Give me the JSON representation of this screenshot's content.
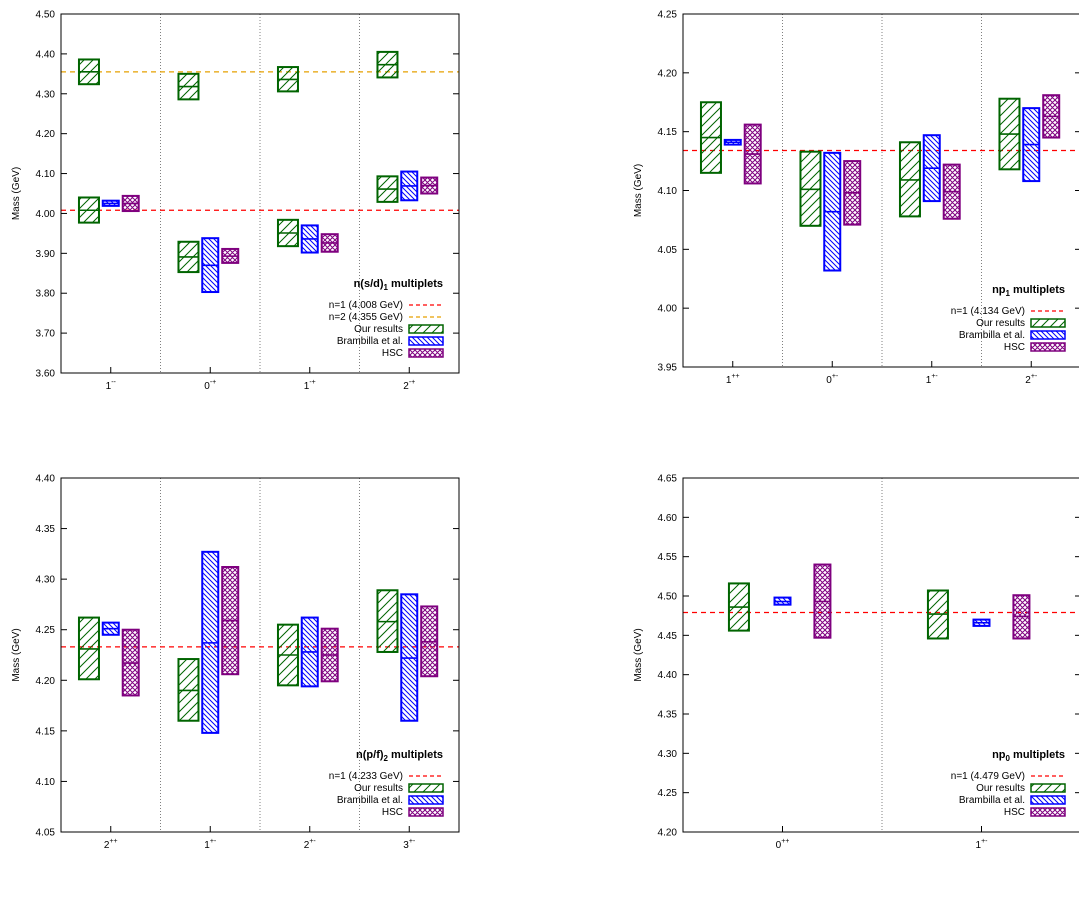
{
  "colors": {
    "our": "#006400",
    "brambilla": "#0000ff",
    "hsc": "#7f007f",
    "line1": "#ff0000",
    "line2": "#e6a000",
    "frame": "#000000",
    "separator": "#808080"
  },
  "chart_data": [
    {
      "type": "bar",
      "title": "n(s/d)₁ multiplets",
      "title_main": "n(s/d)",
      "title_sub": "1",
      "title_rest": " multiplets",
      "ylabel": "Mass (GeV)",
      "ylim": [
        3.6,
        4.5
      ],
      "yticks": [
        "3.60",
        "3.70",
        "3.80",
        "3.90",
        "4.00",
        "4.10",
        "4.20",
        "4.30",
        "4.40",
        "4.50"
      ],
      "grid": false,
      "legend_position": "bottom-right",
      "categories": [
        {
          "base": "1",
          "sup": "--"
        },
        {
          "base": "0",
          "sup": "-+"
        },
        {
          "base": "1",
          "sup": "-+"
        },
        {
          "base": "2",
          "sup": "-+"
        }
      ],
      "reference_lines": [
        {
          "label": "n=1 (4.008 GeV)",
          "value": 4.008,
          "color": "#ff0000"
        },
        {
          "label": "n=2 (4.355 GeV)",
          "value": 4.355,
          "color": "#e6a000"
        }
      ],
      "series": [
        {
          "name": "Our results",
          "boxes": [
            {
              "cat": 0,
              "slot": 0,
              "low": 3.977,
              "mid": 4.008,
              "high": 4.04
            },
            {
              "cat": 0,
              "slot": 0,
              "low": 4.324,
              "mid": 4.355,
              "high": 4.386
            },
            {
              "cat": 1,
              "slot": 0,
              "low": 3.853,
              "mid": 3.891,
              "high": 3.929
            },
            {
              "cat": 1,
              "slot": 0,
              "low": 4.286,
              "mid": 4.318,
              "high": 4.35
            },
            {
              "cat": 2,
              "slot": 0,
              "low": 3.918,
              "mid": 3.951,
              "high": 3.984
            },
            {
              "cat": 2,
              "slot": 0,
              "low": 4.306,
              "mid": 4.336,
              "high": 4.367
            },
            {
              "cat": 3,
              "slot": 0,
              "low": 4.029,
              "mid": 4.061,
              "high": 4.093
            },
            {
              "cat": 3,
              "slot": 0,
              "low": 4.341,
              "mid": 4.373,
              "high": 4.405
            }
          ]
        },
        {
          "name": "Brambilla et al.",
          "boxes": [
            {
              "cat": 0,
              "slot": 1,
              "low": 4.019,
              "mid": 4.025,
              "high": 4.032
            },
            {
              "cat": 1,
              "slot": 1,
              "low": 3.803,
              "mid": 3.87,
              "high": 3.938
            },
            {
              "cat": 2,
              "slot": 1,
              "low": 3.902,
              "mid": 3.936,
              "high": 3.97
            },
            {
              "cat": 3,
              "slot": 1,
              "low": 4.033,
              "mid": 4.069,
              "high": 4.105
            }
          ]
        },
        {
          "name": "HSC",
          "boxes": [
            {
              "cat": 0,
              "slot": 2,
              "low": 4.006,
              "mid": 4.025,
              "high": 4.044
            },
            {
              "cat": 1,
              "slot": 2,
              "low": 3.876,
              "mid": 3.893,
              "high": 3.911
            },
            {
              "cat": 2,
              "slot": 2,
              "low": 3.904,
              "mid": 3.926,
              "high": 3.948
            },
            {
              "cat": 3,
              "slot": 2,
              "low": 4.05,
              "mid": 4.07,
              "high": 4.09
            }
          ]
        }
      ]
    },
    {
      "type": "bar",
      "title": "np₁ multiplets",
      "title_main": "np",
      "title_sub": "1",
      "title_rest": " multiplets",
      "ylabel": "Mass (GeV)",
      "ylim": [
        3.95,
        4.25
      ],
      "yticks": [
        "3.95",
        "4.00",
        "4.05",
        "4.10",
        "4.15",
        "4.20",
        "4.25"
      ],
      "grid": false,
      "legend_position": "bottom-right",
      "categories": [
        {
          "base": "1",
          "sup": "++"
        },
        {
          "base": "0",
          "sup": "+-"
        },
        {
          "base": "1",
          "sup": "+-"
        },
        {
          "base": "2",
          "sup": "+-"
        }
      ],
      "reference_lines": [
        {
          "label": "n=1 (4.134 GeV)",
          "value": 4.134,
          "color": "#ff0000"
        }
      ],
      "series": [
        {
          "name": "Our results",
          "boxes": [
            {
              "cat": 0,
              "slot": 0,
              "low": 4.115,
              "mid": 4.145,
              "high": 4.175
            },
            {
              "cat": 1,
              "slot": 0,
              "low": 4.07,
              "mid": 4.101,
              "high": 4.133
            },
            {
              "cat": 2,
              "slot": 0,
              "low": 4.078,
              "mid": 4.109,
              "high": 4.141
            },
            {
              "cat": 3,
              "slot": 0,
              "low": 4.118,
              "mid": 4.148,
              "high": 4.178
            }
          ]
        },
        {
          "name": "Brambilla et al.",
          "boxes": [
            {
              "cat": 0,
              "slot": 1,
              "low": 4.139,
              "mid": 4.141,
              "high": 4.143
            },
            {
              "cat": 1,
              "slot": 1,
              "low": 4.032,
              "mid": 4.082,
              "high": 4.132
            },
            {
              "cat": 2,
              "slot": 1,
              "low": 4.091,
              "mid": 4.119,
              "high": 4.147
            },
            {
              "cat": 3,
              "slot": 1,
              "low": 4.108,
              "mid": 4.139,
              "high": 4.17
            }
          ]
        },
        {
          "name": "HSC",
          "boxes": [
            {
              "cat": 0,
              "slot": 2,
              "low": 4.106,
              "mid": 4.131,
              "high": 4.156
            },
            {
              "cat": 1,
              "slot": 2,
              "low": 4.071,
              "mid": 4.098,
              "high": 4.125
            },
            {
              "cat": 2,
              "slot": 2,
              "low": 4.076,
              "mid": 4.099,
              "high": 4.122
            },
            {
              "cat": 3,
              "slot": 2,
              "low": 4.145,
              "mid": 4.163,
              "high": 4.181
            }
          ]
        }
      ]
    },
    {
      "type": "bar",
      "title": "n(p/f)₂ multiplets",
      "title_main": "n(p/f)",
      "title_sub": "2",
      "title_rest": " multiplets",
      "ylabel": "Mass (GeV)",
      "ylim": [
        4.05,
        4.4
      ],
      "yticks": [
        "4.05",
        "4.10",
        "4.15",
        "4.20",
        "4.25",
        "4.30",
        "4.35",
        "4.40"
      ],
      "grid": false,
      "legend_position": "bottom-right",
      "categories": [
        {
          "base": "2",
          "sup": "++"
        },
        {
          "base": "1",
          "sup": "+-"
        },
        {
          "base": "2",
          "sup": "+-"
        },
        {
          "base": "3",
          "sup": "+-"
        }
      ],
      "reference_lines": [
        {
          "label": "n=1 (4.233 GeV)",
          "value": 4.233,
          "color": "#ff0000"
        }
      ],
      "series": [
        {
          "name": "Our results",
          "boxes": [
            {
              "cat": 0,
              "slot": 0,
              "low": 4.201,
              "mid": 4.231,
              "high": 4.262
            },
            {
              "cat": 1,
              "slot": 0,
              "low": 4.16,
              "mid": 4.19,
              "high": 4.221
            },
            {
              "cat": 2,
              "slot": 0,
              "low": 4.195,
              "mid": 4.225,
              "high": 4.255
            },
            {
              "cat": 3,
              "slot": 0,
              "low": 4.228,
              "mid": 4.258,
              "high": 4.289
            }
          ]
        },
        {
          "name": "Brambilla et al.",
          "boxes": [
            {
              "cat": 0,
              "slot": 1,
              "low": 4.245,
              "mid": 4.251,
              "high": 4.257
            },
            {
              "cat": 1,
              "slot": 1,
              "low": 4.148,
              "mid": 4.237,
              "high": 4.327
            },
            {
              "cat": 2,
              "slot": 1,
              "low": 4.194,
              "mid": 4.228,
              "high": 4.262
            },
            {
              "cat": 3,
              "slot": 1,
              "low": 4.16,
              "mid": 4.222,
              "high": 4.285
            }
          ]
        },
        {
          "name": "HSC",
          "boxes": [
            {
              "cat": 0,
              "slot": 2,
              "low": 4.185,
              "mid": 4.217,
              "high": 4.25
            },
            {
              "cat": 1,
              "slot": 2,
              "low": 4.206,
              "mid": 4.259,
              "high": 4.312
            },
            {
              "cat": 2,
              "slot": 2,
              "low": 4.199,
              "mid": 4.225,
              "high": 4.251
            },
            {
              "cat": 3,
              "slot": 2,
              "low": 4.204,
              "mid": 4.238,
              "high": 4.273
            }
          ]
        }
      ]
    },
    {
      "type": "bar",
      "title": "np₀ multiplets",
      "title_main": "np",
      "title_sub": "0",
      "title_rest": " multiplets",
      "ylabel": "Mass (GeV)",
      "ylim": [
        4.2,
        4.65
      ],
      "yticks": [
        "4.20",
        "4.25",
        "4.30",
        "4.35",
        "4.40",
        "4.45",
        "4.50",
        "4.55",
        "4.60",
        "4.65"
      ],
      "grid": false,
      "legend_position": "bottom-right",
      "categories": [
        {
          "base": "0",
          "sup": "++"
        },
        {
          "base": "1",
          "sup": "+-"
        }
      ],
      "reference_lines": [
        {
          "label": "n=1 (4.479 GeV)",
          "value": 4.479,
          "color": "#ff0000"
        }
      ],
      "series": [
        {
          "name": "Our results",
          "boxes": [
            {
              "cat": 0,
              "slot": 0,
              "low": 4.456,
              "mid": 4.486,
              "high": 4.516
            },
            {
              "cat": 1,
              "slot": 0,
              "low": 4.446,
              "mid": 4.477,
              "high": 4.507
            }
          ]
        },
        {
          "name": "Brambilla et al.",
          "boxes": [
            {
              "cat": 0,
              "slot": 1,
              "low": 4.489,
              "mid": 4.493,
              "high": 4.498
            },
            {
              "cat": 1,
              "slot": 1,
              "low": 4.462,
              "mid": 4.466,
              "high": 4.47
            }
          ]
        },
        {
          "name": "HSC",
          "boxes": [
            {
              "cat": 0,
              "slot": 2,
              "low": 4.447,
              "mid": 4.493,
              "high": 4.54
            },
            {
              "cat": 1,
              "slot": 2,
              "low": 4.446,
              "mid": 4.474,
              "high": 4.501
            }
          ]
        }
      ]
    }
  ]
}
